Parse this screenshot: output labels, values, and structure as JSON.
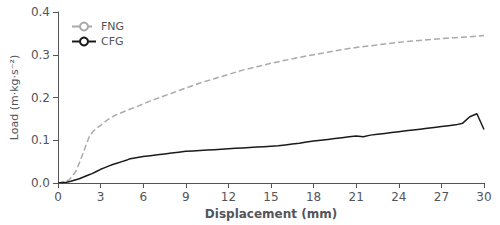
{
  "chart_data": {
    "type": "line",
    "xlabel": "Displacement (mm)",
    "ylabel": "Load (m·kg·s⁻²)",
    "xlim": [
      0,
      30
    ],
    "ylim": [
      0,
      0.4
    ],
    "xticks": [
      0,
      3,
      6,
      9,
      12,
      15,
      18,
      21,
      24,
      27,
      30
    ],
    "yticks": [
      {
        "value": 0.0,
        "label": "0.0"
      },
      0.1,
      0.2,
      0.3,
      0.4
    ],
    "grid": false,
    "legend": "upper left",
    "series": [
      {
        "name": "FNG",
        "color": "#aaaaaa",
        "line_style": "dashed",
        "x": [
          0,
          0.2,
          0.5,
          0.8,
          1.0,
          1.3,
          1.6,
          1.9,
          2.2,
          2.5,
          2.8,
          3.0,
          3.5,
          4.0,
          4.5,
          5.0,
          5.5,
          6.0,
          6.5,
          7.0,
          7.5,
          8.0,
          8.5,
          9.0,
          9.5,
          10.0,
          11.0,
          12.0,
          13.0,
          14.0,
          15.0,
          16.0,
          17.0,
          18.0,
          19.0,
          20.0,
          21.0,
          22.0,
          23.0,
          24.0,
          25.0,
          26.0,
          27.0,
          28.0,
          29.0,
          30.0
        ],
        "values": [
          0.0,
          0.001,
          0.003,
          0.008,
          0.015,
          0.03,
          0.055,
          0.082,
          0.108,
          0.122,
          0.13,
          0.135,
          0.148,
          0.158,
          0.165,
          0.172,
          0.178,
          0.185,
          0.192,
          0.198,
          0.204,
          0.21,
          0.216,
          0.222,
          0.228,
          0.234,
          0.244,
          0.254,
          0.264,
          0.272,
          0.28,
          0.287,
          0.294,
          0.3,
          0.306,
          0.312,
          0.317,
          0.321,
          0.325,
          0.329,
          0.332,
          0.335,
          0.338,
          0.34,
          0.342,
          0.345
        ]
      },
      {
        "name": "CFG",
        "color": "#1a1a1a",
        "line_style": "solid",
        "x": [
          0,
          0.3,
          0.6,
          0.9,
          1.2,
          1.5,
          1.8,
          2.1,
          2.4,
          2.7,
          3.0,
          3.3,
          3.6,
          3.9,
          4.2,
          4.5,
          4.8,
          5.0,
          5.5,
          6.0,
          6.5,
          7.0,
          7.5,
          8.0,
          8.5,
          9.0,
          9.5,
          10.0,
          10.5,
          11.0,
          11.5,
          12.0,
          12.5,
          13.0,
          13.5,
          14.0,
          14.5,
          15.0,
          15.5,
          16.0,
          16.5,
          17.0,
          17.5,
          18.0,
          18.5,
          19.0,
          19.5,
          20.0,
          20.5,
          21.0,
          21.5,
          22.0,
          22.5,
          23.0,
          23.5,
          24.0,
          24.5,
          25.0,
          25.5,
          26.0,
          26.5,
          27.0,
          27.5,
          28.0,
          28.5,
          29.0,
          29.5,
          30.0
        ],
        "values": [
          0.0,
          0.001,
          0.002,
          0.004,
          0.007,
          0.01,
          0.014,
          0.018,
          0.022,
          0.027,
          0.032,
          0.036,
          0.04,
          0.044,
          0.047,
          0.05,
          0.053,
          0.056,
          0.059,
          0.062,
          0.064,
          0.066,
          0.068,
          0.07,
          0.072,
          0.074,
          0.075,
          0.076,
          0.077,
          0.078,
          0.079,
          0.08,
          0.081,
          0.082,
          0.083,
          0.084,
          0.085,
          0.086,
          0.087,
          0.089,
          0.091,
          0.093,
          0.096,
          0.098,
          0.1,
          0.102,
          0.104,
          0.106,
          0.108,
          0.11,
          0.108,
          0.112,
          0.114,
          0.116,
          0.118,
          0.12,
          0.122,
          0.124,
          0.126,
          0.128,
          0.13,
          0.132,
          0.134,
          0.136,
          0.14,
          0.155,
          0.162,
          0.125
        ]
      }
    ]
  }
}
